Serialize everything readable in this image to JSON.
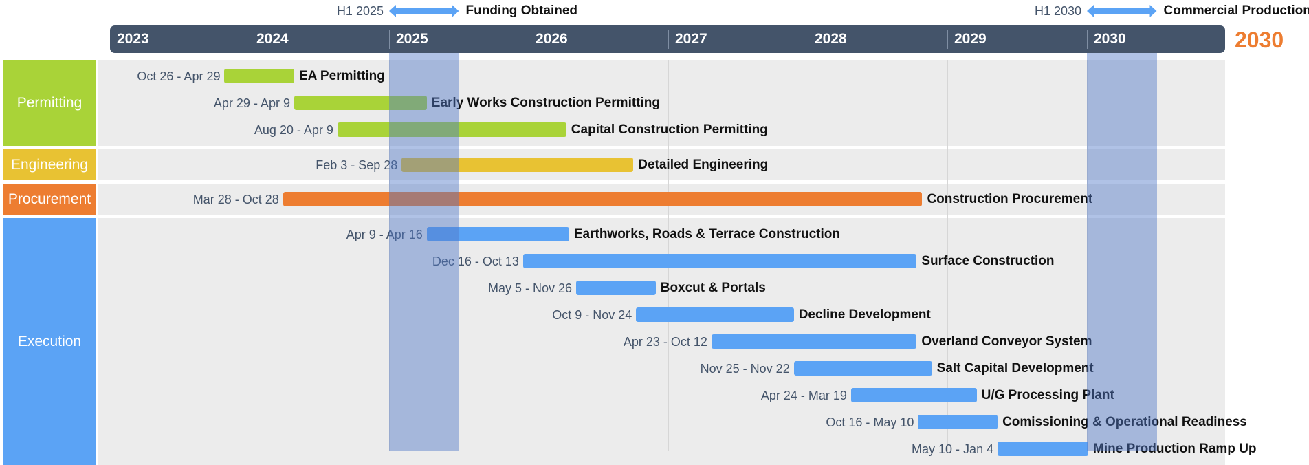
{
  "chart_data": {
    "type": "gantt",
    "end_label": "2030",
    "years": [
      "2023",
      "2024",
      "2025",
      "2026",
      "2027",
      "2028",
      "2029",
      "2030"
    ],
    "milestones": [
      {
        "when": "H1 2025",
        "label": "Funding Obtained",
        "start": 2025.0,
        "end": 2025.5
      },
      {
        "when": "H1 2030",
        "label": "Commercial Production",
        "start": 2030.0,
        "end": 2030.5
      }
    ],
    "groups": [
      {
        "name": "Permitting",
        "color": "#a9d338",
        "tasks": [
          {
            "name": "EA Permitting",
            "dates": "Oct 26 - Apr 29",
            "start": 2023.82,
            "end": 2024.32
          },
          {
            "name": "Early Works Construction Permitting",
            "dates": "Apr 29 - Apr 9",
            "start": 2024.32,
            "end": 2025.27
          },
          {
            "name": "Capital Construction Permitting",
            "dates": "Aug 20 - Apr 9",
            "start": 2024.63,
            "end": 2026.27
          }
        ]
      },
      {
        "name": "Engineering",
        "color": "#e8c233",
        "tasks": [
          {
            "name": "Detailed Engineering",
            "dates": "Feb 3 - Sep 28",
            "start": 2025.09,
            "end": 2026.75
          }
        ]
      },
      {
        "name": "Procurement",
        "color": "#ed7d31",
        "tasks": [
          {
            "name": "Construction Procurement",
            "dates": "Mar 28 - Oct 28",
            "start": 2024.24,
            "end": 2028.82
          }
        ]
      },
      {
        "name": "Execution",
        "color": "#5ba3f5",
        "tasks": [
          {
            "name": "Earthworks, Roads & Terrace Construction",
            "dates": "Apr 9 - Apr 16",
            "start": 2025.27,
            "end": 2026.29
          },
          {
            "name": "Surface Construction",
            "dates": "Dec 16 - Oct 13",
            "start": 2025.96,
            "end": 2028.78
          },
          {
            "name": "Boxcut & Portals",
            "dates": "May 5 - Nov 26",
            "start": 2026.34,
            "end": 2026.91
          },
          {
            "name": "Decline Development",
            "dates": "Oct 9 - Nov 24",
            "start": 2026.77,
            "end": 2027.9
          },
          {
            "name": "Overland Conveyor System",
            "dates": "Apr 23 - Oct 12",
            "start": 2027.31,
            "end": 2028.78
          },
          {
            "name": "Salt Capital Development",
            "dates": "Nov 25 - Nov 22",
            "start": 2027.9,
            "end": 2028.89
          },
          {
            "name": "U/G Processing Plant",
            "dates": "Apr 24 - Mar 19",
            "start": 2028.31,
            "end": 2029.21
          },
          {
            "name": "Comissioning & Operational Readiness",
            "dates": "Oct 16 - May 10",
            "start": 2028.79,
            "end": 2029.36
          },
          {
            "name": "Mine Production Ramp Up",
            "dates": "May 10 - Jan 4",
            "start": 2029.36,
            "end": 2030.01
          }
        ]
      }
    ]
  }
}
